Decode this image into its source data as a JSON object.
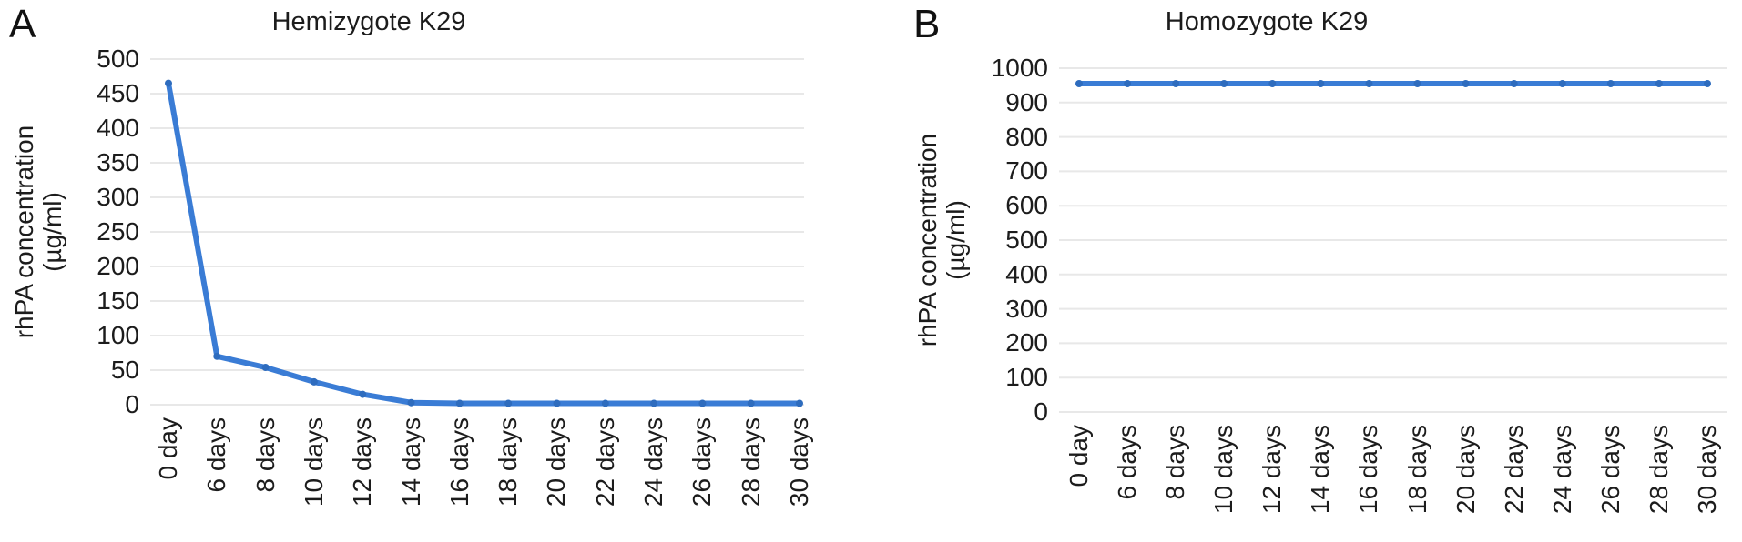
{
  "figure": {
    "description": "Two-panel line figure of rhPA concentration over days",
    "panel_count": 2
  },
  "colors": {
    "line": "#3a7cd5",
    "marker": "#2e6cbe",
    "grid": "#e8e8e8",
    "text": "#1c1c1c",
    "background": "#ffffff"
  },
  "panels": [
    {
      "letter": "A",
      "title": "Hemizygote K29",
      "y_axis_title_line1": "rhPA concentration",
      "y_axis_title_line2": "(µg/ml)"
    },
    {
      "letter": "B",
      "title": "Homozygote K29",
      "y_axis_title_line1": "rhPA concentration",
      "y_axis_title_line2": "(µg/ml)"
    }
  ],
  "chart_data": [
    {
      "type": "line",
      "title": "Hemizygote K29",
      "categories": [
        "0 day",
        "6 days",
        "8 days",
        "10 days",
        "12 days",
        "14 days",
        "16 days",
        "18 days",
        "20 days",
        "22 days",
        "24 days",
        "26 days",
        "28 days",
        "30 days"
      ],
      "values": [
        465,
        70,
        54,
        33,
        15,
        3,
        2,
        2,
        2,
        2,
        2,
        2,
        2,
        2
      ],
      "xlabel": "",
      "ylabel": "rhPA concentration (µg/ml)",
      "ylim": [
        0,
        500
      ],
      "ytick_step": 50,
      "grid": "horizontal-only",
      "legend": false
    },
    {
      "type": "line",
      "title": "Homozygote K29",
      "categories": [
        "0 day",
        "6 days",
        "8 days",
        "10 days",
        "12 days",
        "14 days",
        "16 days",
        "18 days",
        "20 days",
        "22 days",
        "24 days",
        "26 days",
        "28 days",
        "30 days"
      ],
      "values": [
        955,
        955,
        955,
        955,
        955,
        955,
        955,
        955,
        955,
        955,
        955,
        955,
        955,
        955
      ],
      "xlabel": "",
      "ylabel": "rhPA concentration (µg/ml)",
      "ylim": [
        0,
        1000
      ],
      "ytick_step": 100,
      "grid": "horizontal-only",
      "legend": false
    }
  ]
}
